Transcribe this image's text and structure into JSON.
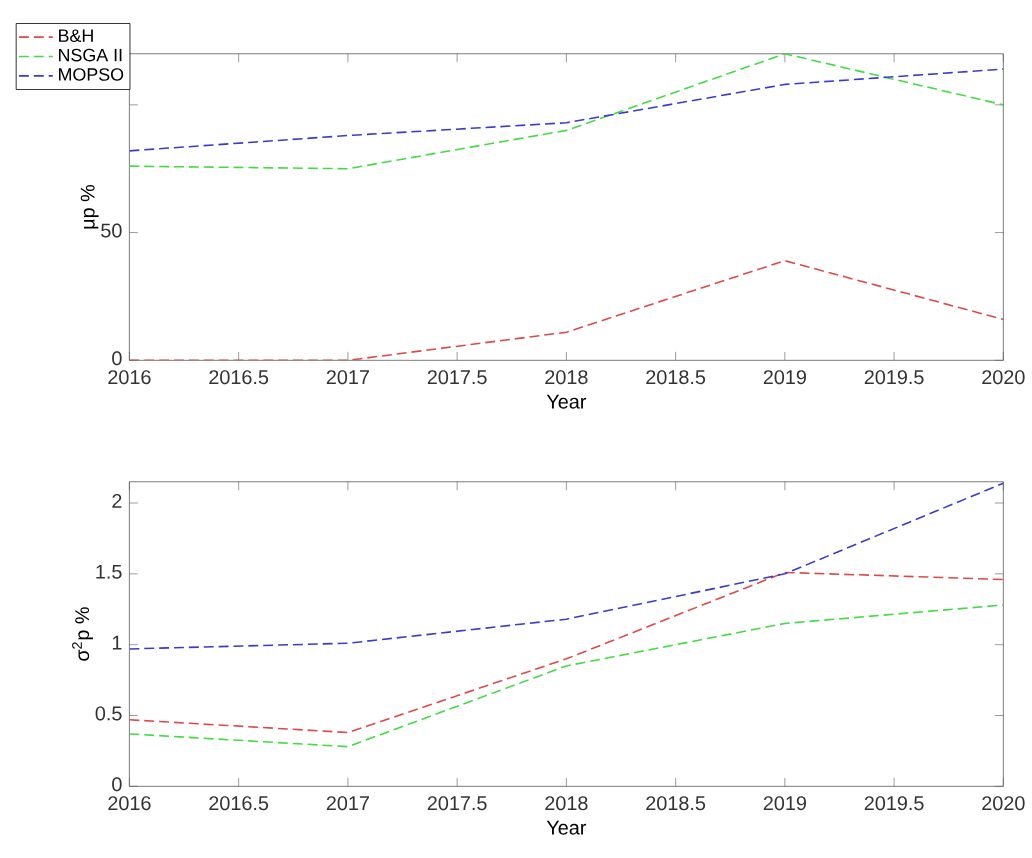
{
  "chart_data": [
    {
      "type": "line",
      "xlabel": "Year",
      "ylabel": "μp %",
      "x": [
        2016,
        2017,
        2018,
        2019,
        2020
      ],
      "xlim": [
        2016,
        2020
      ],
      "xticks": [
        2016,
        2016.5,
        2017,
        2017.5,
        2018,
        2018.5,
        2019,
        2019.5,
        2020
      ],
      "ylim": [
        0,
        120
      ],
      "yticks": [
        0,
        50,
        {
          "value": 100,
          "label": null
        }
      ],
      "grid": false,
      "legend": "top left",
      "marker": "none",
      "line_style": "dashed",
      "series": [
        {
          "name": "B&H",
          "color": "#e04848",
          "values": [
            0,
            0,
            11,
            39,
            16
          ]
        },
        {
          "name": "NSGA II",
          "color": "#40dd40",
          "values": [
            76,
            75,
            90,
            120,
            100
          ]
        },
        {
          "name": "MOPSO",
          "color": "#3a3ad0",
          "values": [
            82,
            88,
            93,
            108,
            114
          ]
        }
      ]
    },
    {
      "type": "line",
      "xlabel": "Year",
      "ylabel": "σ$^{2}$p %",
      "x": [
        2016,
        2017,
        2018,
        2019,
        2020
      ],
      "xlim": [
        2016,
        2020
      ],
      "xticks": [
        2016,
        2016.5,
        2017,
        2017.5,
        2018,
        2018.5,
        2019,
        2019.5,
        2020
      ],
      "ylim": [
        0,
        2.15
      ],
      "yticks": [
        0,
        0.5,
        1,
        1.5,
        2
      ],
      "grid": false,
      "marker": "none",
      "line_style": "dashed",
      "series": [
        {
          "color": "#e04848",
          "values": [
            0.47,
            0.38,
            0.9,
            1.51,
            1.46
          ]
        },
        {
          "color": "#40dd40",
          "values": [
            0.37,
            0.28,
            0.85,
            1.15,
            1.28
          ]
        },
        {
          "color": "#3a3ad0",
          "values": [
            0.97,
            1.01,
            1.18,
            1.5,
            2.14
          ]
        }
      ]
    }
  ]
}
